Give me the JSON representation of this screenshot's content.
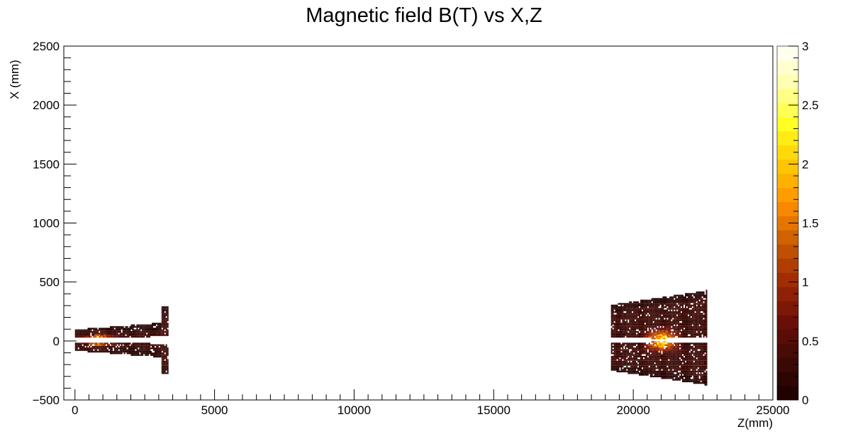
{
  "chart_data": {
    "type": "heatmap",
    "title": "Magnetic field B(T) vs X,Z",
    "xlabel": "Z(mm)",
    "ylabel": "X (mm)",
    "xlim": [
      -400,
      25000
    ],
    "ylim": [
      -500,
      2500
    ],
    "x_ticks": [
      0,
      5000,
      10000,
      15000,
      20000,
      25000
    ],
    "x_tick_labels": [
      "0",
      "5000",
      "10000",
      "15000",
      "20000",
      "25000"
    ],
    "y_ticks": [
      -500,
      0,
      500,
      1000,
      1500,
      2000,
      2500
    ],
    "y_tick_labels": [
      "−500",
      "0",
      "500",
      "1000",
      "1500",
      "2000",
      "2500"
    ],
    "colorbar": {
      "range": [
        0,
        3
      ],
      "ticks": [
        0,
        0.5,
        1,
        1.5,
        2,
        2.5,
        3
      ],
      "tick_labels": [
        "0",
        "0.5",
        "1",
        "1.5",
        "2",
        "2.5",
        "3"
      ],
      "levels": 25,
      "palette": [
        "#1a0000",
        "#3d0a05",
        "#6b0f07",
        "#9e2a05",
        "#c85a00",
        "#ff9000",
        "#ffc800",
        "#ffff20",
        "#ffffa8",
        "#ffffff"
      ]
    },
    "regions": [
      {
        "z_min": 0,
        "z_max": 3300,
        "x_min": -280,
        "x_max": 280,
        "b_typical": 0.3,
        "b_peak": 2.0,
        "peak_z": 800
      },
      {
        "z_min": 19200,
        "z_max": 22600,
        "x_min": -420,
        "x_max": 500,
        "b_typical": 0.3,
        "b_peak": 3.0,
        "peak_z": 21000
      }
    ],
    "grid": false,
    "legend": "colorbar-right"
  }
}
